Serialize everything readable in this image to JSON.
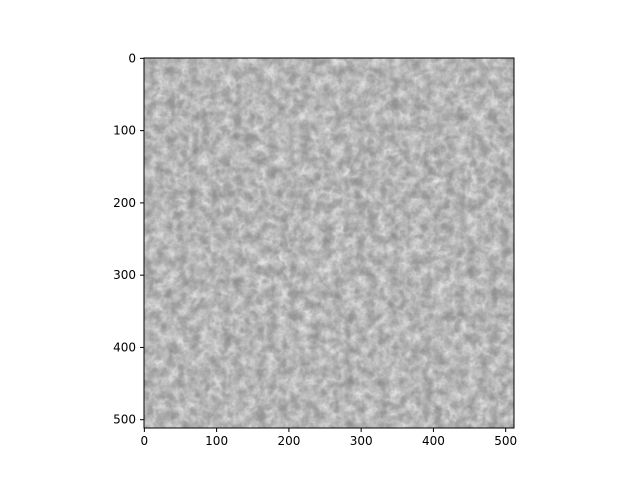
{
  "chart_data": {
    "type": "heatmap",
    "title": "",
    "xlabel": "",
    "ylabel": "",
    "colormap": "gray",
    "image_shape": [
      512,
      512
    ],
    "xlim": [
      -0.5,
      511.5
    ],
    "ylim": [
      511.5,
      -0.5
    ],
    "x_ticks": [
      0,
      100,
      200,
      300,
      400,
      500
    ],
    "y_ticks": [
      0,
      100,
      200,
      300,
      400,
      500
    ],
    "x_tick_labels": [
      "0",
      "100",
      "200",
      "300",
      "400",
      "500"
    ],
    "y_tick_labels": [
      "0",
      "100",
      "200",
      "300",
      "400",
      "500"
    ],
    "content": "grayscale edge-detected texture image",
    "colors": {
      "background": "#ffffff",
      "axis": "#000000",
      "mid_gray": "#8a8a8a"
    },
    "grid": false,
    "legend": "none"
  }
}
